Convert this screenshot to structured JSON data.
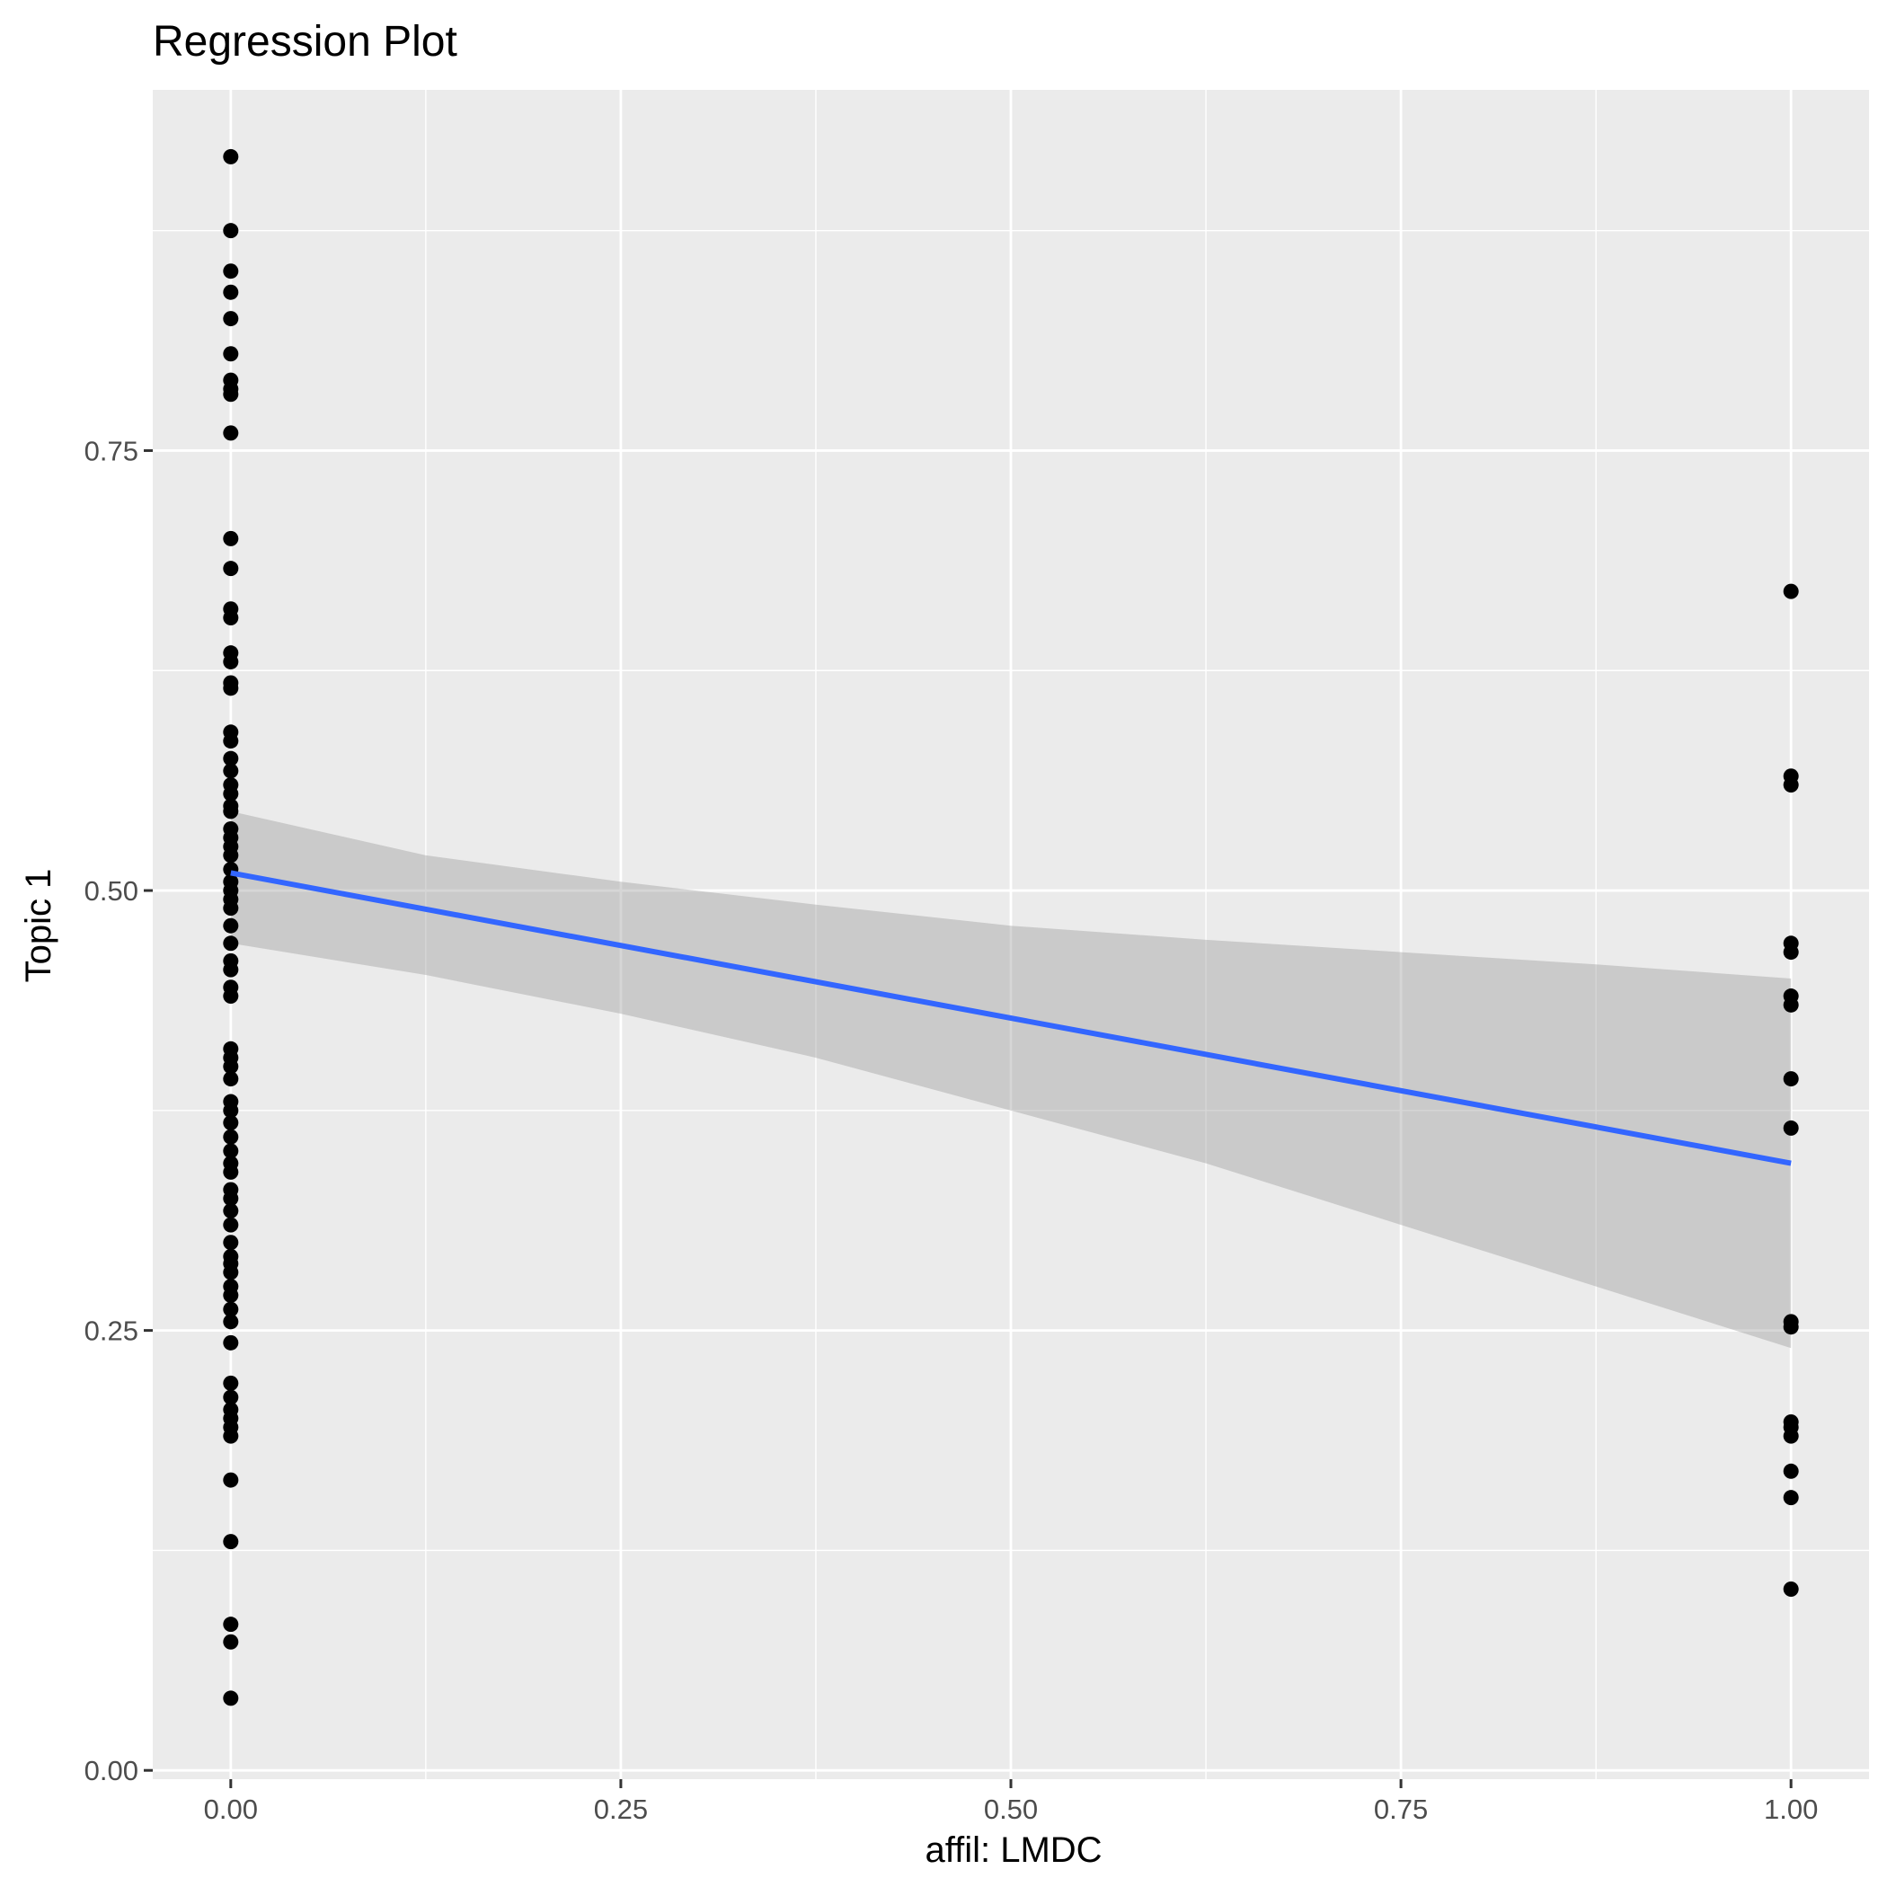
{
  "chart_data": {
    "type": "scatter",
    "title": "Regression Plot",
    "xlabel": "affil: LMDC",
    "ylabel": "Topic 1",
    "xlim": [
      -0.05,
      1.05
    ],
    "ylim": [
      -0.005,
      0.955
    ],
    "x_ticks": [
      {
        "value": 0.0,
        "label": "0.00"
      },
      {
        "value": 0.25,
        "label": "0.25"
      },
      {
        "value": 0.5,
        "label": "0.50"
      },
      {
        "value": 0.75,
        "label": "0.75"
      },
      {
        "value": 1.0,
        "label": "1.00"
      }
    ],
    "y_ticks": [
      {
        "value": 0.0,
        "label": "0.00"
      },
      {
        "value": 0.25,
        "label": "0.25"
      },
      {
        "value": 0.5,
        "label": "0.50"
      },
      {
        "value": 0.75,
        "label": "0.75"
      }
    ],
    "x_minor": [
      0.125,
      0.375,
      0.625,
      0.875
    ],
    "y_minor": [
      0.125,
      0.375,
      0.625,
      0.875
    ],
    "grid": true,
    "colors": {
      "panel": "#ebebeb",
      "grid": "#ffffff",
      "points": "#000000",
      "line": "#3366ff",
      "band": "#999999"
    },
    "series": [
      {
        "values": [
          {
            "x": 0,
            "y": 0.917
          },
          {
            "x": 0,
            "y": 0.875
          },
          {
            "x": 0,
            "y": 0.852
          },
          {
            "x": 0,
            "y": 0.84
          },
          {
            "x": 0,
            "y": 0.825
          },
          {
            "x": 0,
            "y": 0.805
          },
          {
            "x": 0,
            "y": 0.79
          },
          {
            "x": 0,
            "y": 0.785
          },
          {
            "x": 0,
            "y": 0.782
          },
          {
            "x": 0,
            "y": 0.76
          },
          {
            "x": 0,
            "y": 0.7
          },
          {
            "x": 0,
            "y": 0.683
          },
          {
            "x": 0,
            "y": 0.66
          },
          {
            "x": 0,
            "y": 0.655
          },
          {
            "x": 0,
            "y": 0.635
          },
          {
            "x": 0,
            "y": 0.63
          },
          {
            "x": 0,
            "y": 0.618
          },
          {
            "x": 0,
            "y": 0.615
          },
          {
            "x": 0,
            "y": 0.59
          },
          {
            "x": 0,
            "y": 0.585
          },
          {
            "x": 0,
            "y": 0.575
          },
          {
            "x": 0,
            "y": 0.568
          },
          {
            "x": 0,
            "y": 0.56
          },
          {
            "x": 0,
            "y": 0.555
          },
          {
            "x": 0,
            "y": 0.548
          },
          {
            "x": 0,
            "y": 0.545
          },
          {
            "x": 0,
            "y": 0.535
          },
          {
            "x": 0,
            "y": 0.53
          },
          {
            "x": 0,
            "y": 0.525
          },
          {
            "x": 0,
            "y": 0.52
          },
          {
            "x": 0,
            "y": 0.512
          },
          {
            "x": 0,
            "y": 0.505
          },
          {
            "x": 0,
            "y": 0.5
          },
          {
            "x": 0,
            "y": 0.495
          },
          {
            "x": 0,
            "y": 0.49
          },
          {
            "x": 0,
            "y": 0.48
          },
          {
            "x": 0,
            "y": 0.47
          },
          {
            "x": 0,
            "y": 0.46
          },
          {
            "x": 0,
            "y": 0.455
          },
          {
            "x": 0,
            "y": 0.445
          },
          {
            "x": 0,
            "y": 0.44
          },
          {
            "x": 0,
            "y": 0.41
          },
          {
            "x": 0,
            "y": 0.405
          },
          {
            "x": 0,
            "y": 0.4
          },
          {
            "x": 0,
            "y": 0.393
          },
          {
            "x": 0,
            "y": 0.38
          },
          {
            "x": 0,
            "y": 0.375
          },
          {
            "x": 0,
            "y": 0.368
          },
          {
            "x": 0,
            "y": 0.36
          },
          {
            "x": 0,
            "y": 0.352
          },
          {
            "x": 0,
            "y": 0.345
          },
          {
            "x": 0,
            "y": 0.34
          },
          {
            "x": 0,
            "y": 0.33
          },
          {
            "x": 0,
            "y": 0.325
          },
          {
            "x": 0,
            "y": 0.318
          },
          {
            "x": 0,
            "y": 0.31
          },
          {
            "x": 0,
            "y": 0.3
          },
          {
            "x": 0,
            "y": 0.292
          },
          {
            "x": 0,
            "y": 0.288
          },
          {
            "x": 0,
            "y": 0.283
          },
          {
            "x": 0,
            "y": 0.275
          },
          {
            "x": 0,
            "y": 0.27
          },
          {
            "x": 0,
            "y": 0.262
          },
          {
            "x": 0,
            "y": 0.255
          },
          {
            "x": 0,
            "y": 0.243
          },
          {
            "x": 0,
            "y": 0.22
          },
          {
            "x": 0,
            "y": 0.212
          },
          {
            "x": 0,
            "y": 0.205
          },
          {
            "x": 0,
            "y": 0.2
          },
          {
            "x": 0,
            "y": 0.195
          },
          {
            "x": 0,
            "y": 0.19
          },
          {
            "x": 0,
            "y": 0.165
          },
          {
            "x": 0,
            "y": 0.13
          },
          {
            "x": 0,
            "y": 0.083
          },
          {
            "x": 0,
            "y": 0.073
          },
          {
            "x": 0,
            "y": 0.041
          },
          {
            "x": 1,
            "y": 0.67
          },
          {
            "x": 1,
            "y": 0.565
          },
          {
            "x": 1,
            "y": 0.56
          },
          {
            "x": 1,
            "y": 0.47
          },
          {
            "x": 1,
            "y": 0.465
          },
          {
            "x": 1,
            "y": 0.44
          },
          {
            "x": 1,
            "y": 0.435
          },
          {
            "x": 1,
            "y": 0.393
          },
          {
            "x": 1,
            "y": 0.365
          },
          {
            "x": 1,
            "y": 0.255
          },
          {
            "x": 1,
            "y": 0.252
          },
          {
            "x": 1,
            "y": 0.198
          },
          {
            "x": 1,
            "y": 0.195
          },
          {
            "x": 1,
            "y": 0.19
          },
          {
            "x": 1,
            "y": 0.17
          },
          {
            "x": 1,
            "y": 0.155
          },
          {
            "x": 1,
            "y": 0.103
          }
        ]
      }
    ],
    "regression": {
      "line": [
        {
          "x": 0,
          "y": 0.51
        },
        {
          "x": 1,
          "y": 0.345
        }
      ],
      "band_upper": [
        {
          "x": 0,
          "y": 0.545
        },
        {
          "x": 0.125,
          "y": 0.52
        },
        {
          "x": 0.25,
          "y": 0.505
        },
        {
          "x": 0.375,
          "y": 0.492
        },
        {
          "x": 0.5,
          "y": 0.48
        },
        {
          "x": 0.625,
          "y": 0.472
        },
        {
          "x": 0.75,
          "y": 0.465
        },
        {
          "x": 0.875,
          "y": 0.458
        },
        {
          "x": 1,
          "y": 0.45
        }
      ],
      "band_lower": [
        {
          "x": 0,
          "y": 0.47
        },
        {
          "x": 0.125,
          "y": 0.452
        },
        {
          "x": 0.25,
          "y": 0.43
        },
        {
          "x": 0.375,
          "y": 0.405
        },
        {
          "x": 0.5,
          "y": 0.375
        },
        {
          "x": 0.625,
          "y": 0.345
        },
        {
          "x": 0.75,
          "y": 0.31
        },
        {
          "x": 0.875,
          "y": 0.275
        },
        {
          "x": 1,
          "y": 0.24
        }
      ]
    }
  }
}
